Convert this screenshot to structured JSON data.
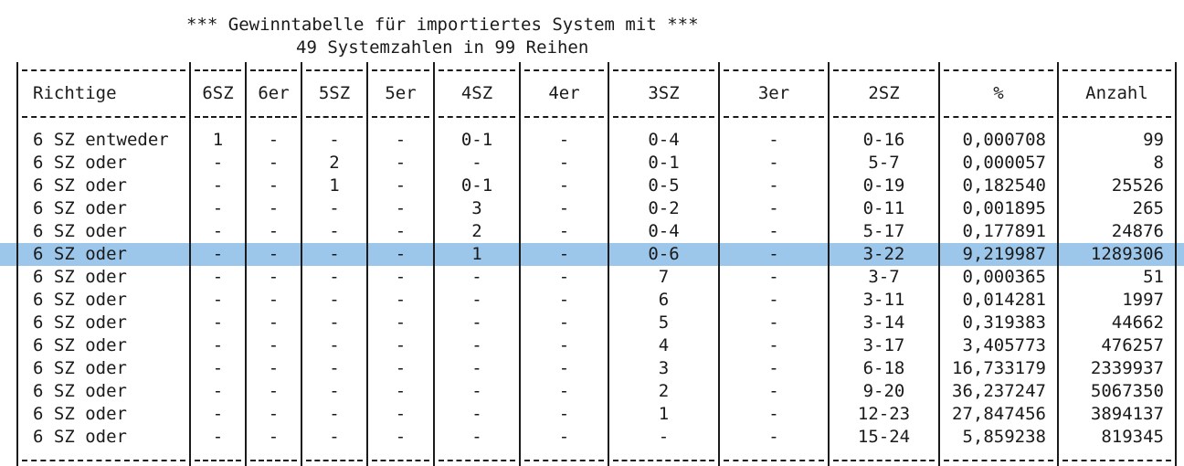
{
  "title": {
    "line1": "*** Gewinntabelle für importiertes System mit ***",
    "line2": "49 Systemzahlen in 99 Reihen"
  },
  "columns": [
    "Richtige",
    "6SZ",
    "6er",
    "5SZ",
    "5er",
    "4SZ",
    "4er",
    "3SZ",
    "3er",
    "2SZ",
    "%",
    "Anzahl"
  ],
  "rows": [
    [
      "6 SZ entweder",
      "1",
      "-",
      "-",
      "-",
      "0-1",
      "-",
      "0-4",
      "-",
      "0-16",
      "0,000708",
      "99"
    ],
    [
      "6 SZ oder",
      "-",
      "-",
      "2",
      "-",
      "-",
      "-",
      "0-1",
      "-",
      "5-7",
      "0,000057",
      "8"
    ],
    [
      "6 SZ oder",
      "-",
      "-",
      "1",
      "-",
      "0-1",
      "-",
      "0-5",
      "-",
      "0-19",
      "0,182540",
      "25526"
    ],
    [
      "6 SZ oder",
      "-",
      "-",
      "-",
      "-",
      "3",
      "-",
      "0-2",
      "-",
      "0-11",
      "0,001895",
      "265"
    ],
    [
      "6 SZ oder",
      "-",
      "-",
      "-",
      "-",
      "2",
      "-",
      "0-4",
      "-",
      "5-17",
      "0,177891",
      "24876"
    ],
    [
      "6 SZ oder",
      "-",
      "-",
      "-",
      "-",
      "1",
      "-",
      "0-6",
      "-",
      "3-22",
      "9,219987",
      "1289306"
    ],
    [
      "6 SZ oder",
      "-",
      "-",
      "-",
      "-",
      "-",
      "-",
      "7",
      "-",
      "3-7",
      "0,000365",
      "51"
    ],
    [
      "6 SZ oder",
      "-",
      "-",
      "-",
      "-",
      "-",
      "-",
      "6",
      "-",
      "3-11",
      "0,014281",
      "1997"
    ],
    [
      "6 SZ oder",
      "-",
      "-",
      "-",
      "-",
      "-",
      "-",
      "5",
      "-",
      "3-14",
      "0,319383",
      "44662"
    ],
    [
      "6 SZ oder",
      "-",
      "-",
      "-",
      "-",
      "-",
      "-",
      "4",
      "-",
      "3-17",
      "3,405773",
      "476257"
    ],
    [
      "6 SZ oder",
      "-",
      "-",
      "-",
      "-",
      "-",
      "-",
      "3",
      "-",
      "6-18",
      "16,733179",
      "2339937"
    ],
    [
      "6 SZ oder",
      "-",
      "-",
      "-",
      "-",
      "-",
      "-",
      "2",
      "-",
      "9-20",
      "36,237247",
      "5067350"
    ],
    [
      "6 SZ oder",
      "-",
      "-",
      "-",
      "-",
      "-",
      "-",
      "1",
      "-",
      "12-23",
      "27,847456",
      "3894137"
    ],
    [
      "6 SZ oder",
      "-",
      "-",
      "-",
      "-",
      "-",
      "-",
      "-",
      "-",
      "15-24",
      "5,859238",
      "819345"
    ]
  ],
  "highlighted_row": 5,
  "colors": {
    "highlight": "#9cc7ea",
    "text": "#1a1a1a",
    "background": "#ffffff"
  }
}
